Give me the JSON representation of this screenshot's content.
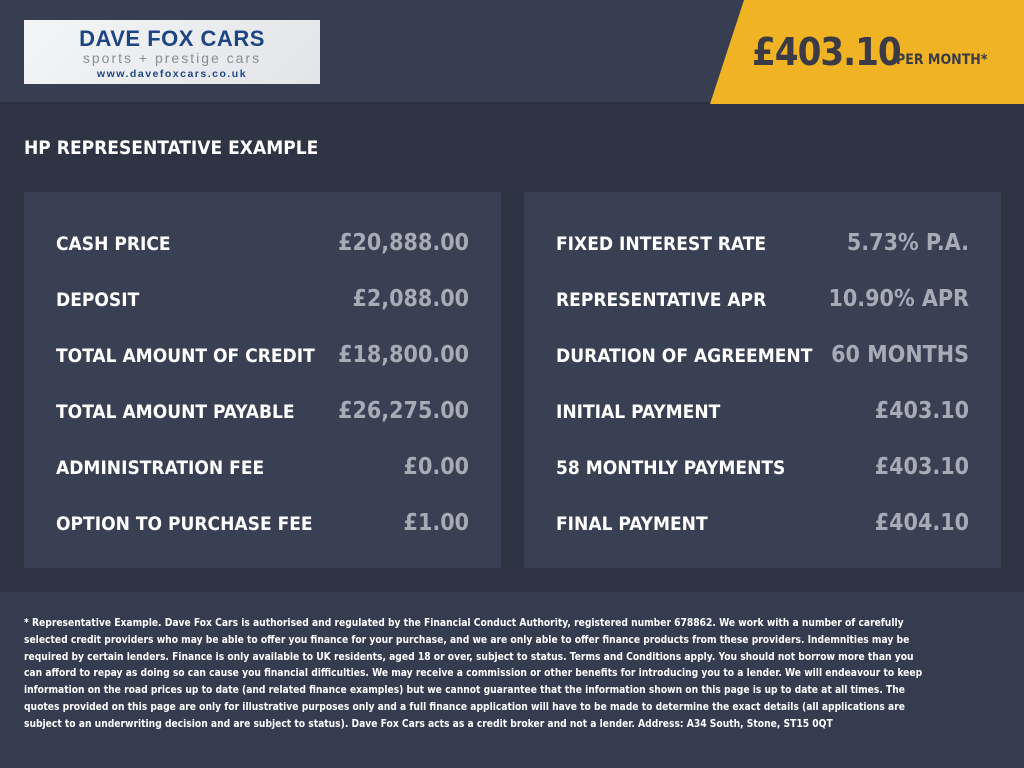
{
  "header": {
    "logo": {
      "name": "DAVE FOX CARS",
      "tagline": "sports + prestige cars",
      "url": "www.davefoxcars.co.uk"
    },
    "price": "£403.10",
    "price_suffix": "PER MONTH*",
    "accent_color": "#f0b323"
  },
  "section_title": "HP REPRESENTATIVE EXAMPLE",
  "left_panel": [
    {
      "label": "CASH PRICE",
      "value": "£20,888.00"
    },
    {
      "label": "DEPOSIT",
      "value": "£2,088.00"
    },
    {
      "label": "TOTAL AMOUNT OF CREDIT",
      "value": "£18,800.00"
    },
    {
      "label": "TOTAL AMOUNT PAYABLE",
      "value": "£26,275.00"
    },
    {
      "label": "ADMINISTRATION FEE",
      "value": "£0.00"
    },
    {
      "label": "OPTION TO PURCHASE FEE",
      "value": "£1.00"
    }
  ],
  "right_panel": [
    {
      "label": "FIXED INTEREST RATE",
      "value": "5.73% P.A."
    },
    {
      "label": "REPRESENTATIVE APR",
      "value": "10.90% APR"
    },
    {
      "label": "DURATION OF AGREEMENT",
      "value": "60 MONTHS"
    },
    {
      "label": "INITIAL PAYMENT",
      "value": "£403.10"
    },
    {
      "label": "58 MONTHLY PAYMENTS",
      "value": "£403.10"
    },
    {
      "label": "FINAL PAYMENT",
      "value": "£404.10"
    }
  ],
  "footer": {
    "disclaimer": "* Representative Example. Dave Fox Cars is authorised and regulated by the Financial Conduct Authority, registered number 678862. We work with a number of carefully selected credit providers who may be able to offer you finance for your purchase, and we are only able to offer finance products from these providers. Indemnities may be required by certain lenders. Finance is only available to UK residents, aged 18 or over, subject to status. Terms and Conditions apply. You should not borrow more than you can afford to repay as doing so can cause you financial difficulties. We may receive a commission or other benefits for introducing you to a lender. We will endeavour to keep information on the road prices up to date (and related finance examples) but we cannot guarantee that the information shown on this page is up to date at all times. The quotes provided on this page are only for illustrative purposes only and a full finance application will have to be made to determine the exact details (all applications are subject to an underwriting decision and are subject to status). Dave Fox Cars acts as a credit broker and not a lender. Address: A34 South, Stone, ST15 0QT"
  }
}
